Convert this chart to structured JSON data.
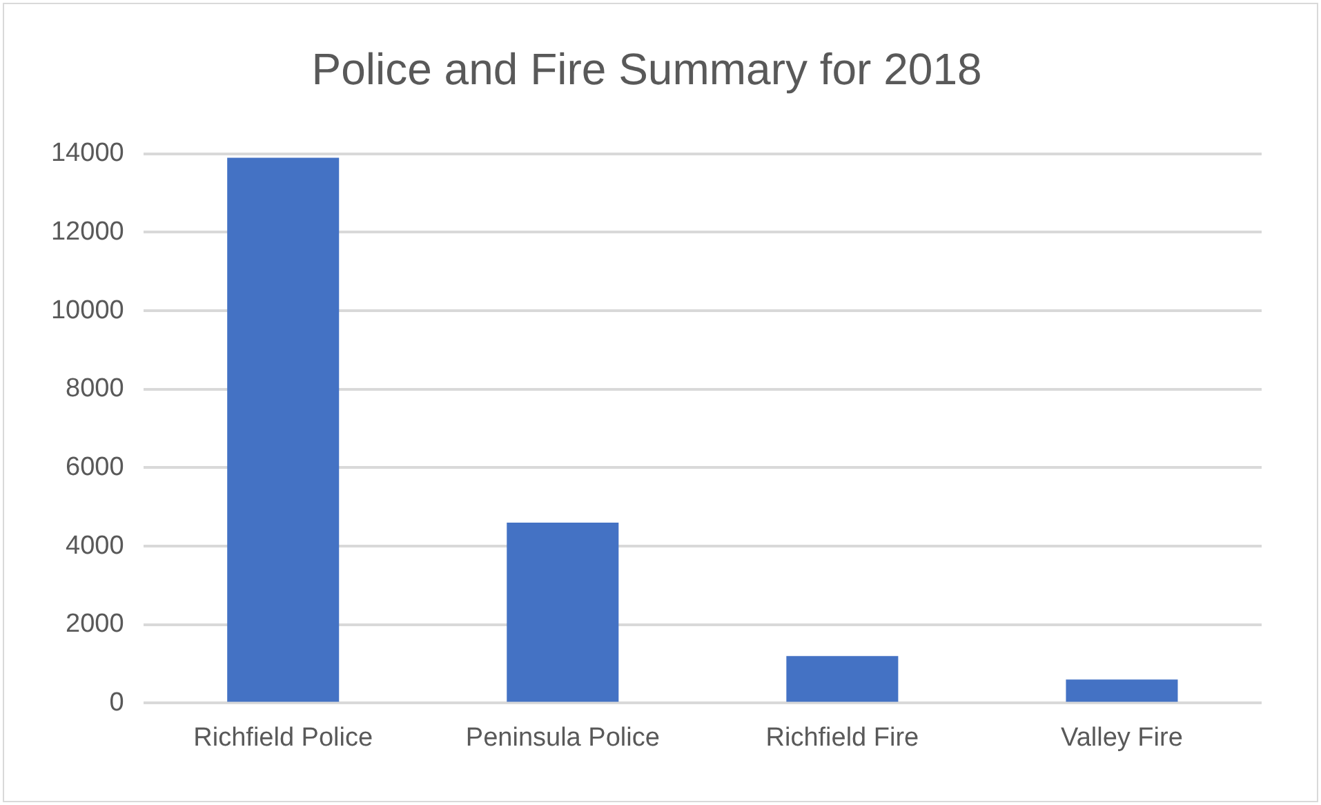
{
  "chart_data": {
    "type": "bar",
    "title": "Police and Fire Summary for 2018",
    "categories": [
      "Richfield Police",
      "Peninsula Police",
      "Richfield Fire",
      "Valley Fire"
    ],
    "values": [
      13900,
      4600,
      1200,
      600
    ],
    "color": "#4472c4",
    "ylim": [
      0,
      14000
    ],
    "yticks": [
      0,
      2000,
      4000,
      6000,
      8000,
      10000,
      12000,
      14000
    ],
    "grid": "y"
  }
}
